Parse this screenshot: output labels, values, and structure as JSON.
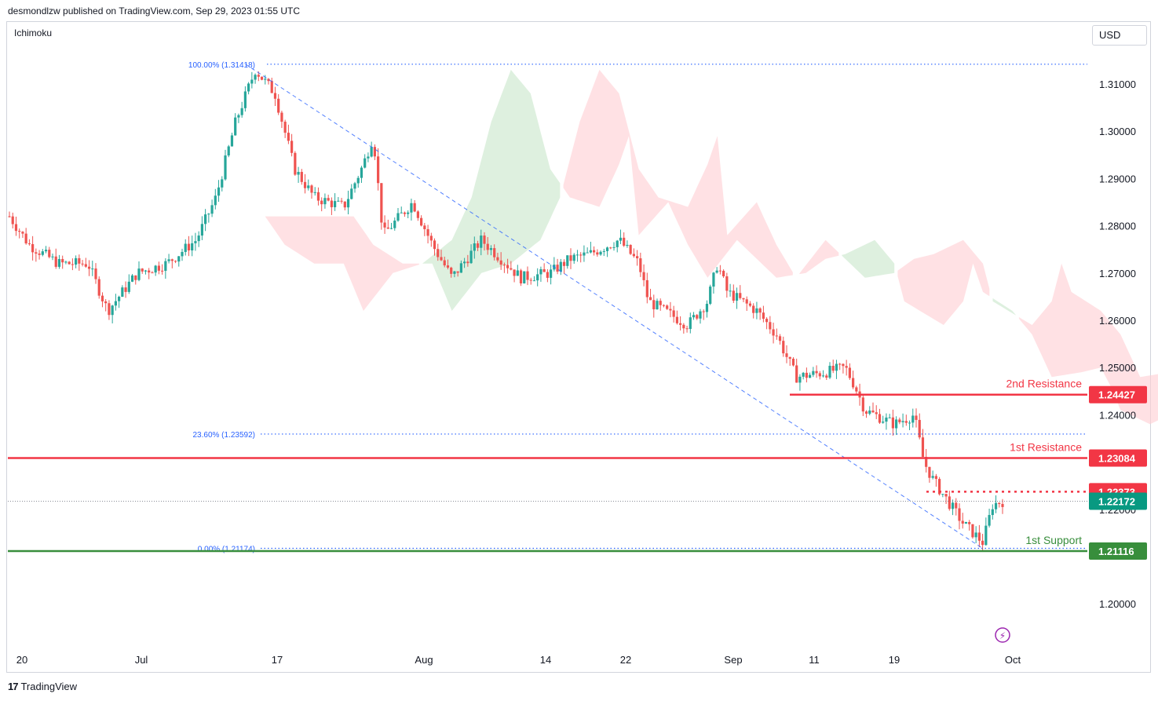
{
  "header": {
    "publisher": "desmondlzw published on TradingView.com, Sep 29, 2023 01:55 UTC"
  },
  "indicator_label": "Ichimoku",
  "currency": "USD",
  "footer": {
    "brand": "TradingView",
    "logo_icon": "tradingview-logo-icon"
  },
  "colors": {
    "up": "#26a69a",
    "down": "#ef5350",
    "resistance": "#f23645",
    "support": "#388e3c",
    "fib": "#2962ff",
    "last_price": "#089981",
    "cloud_bull": "#c8e6c9",
    "cloud_bear": "#ffcdd2"
  },
  "chart_data": {
    "type": "candlestick",
    "symbol_note": "Ichimoku",
    "y_axis": {
      "ticks": [
        1.31,
        1.3,
        1.29,
        1.28,
        1.27,
        1.26,
        1.25,
        1.24,
        1.22,
        1.2
      ],
      "tick_labels": [
        "1.31000",
        "1.30000",
        "1.29000",
        "1.28000",
        "1.27000",
        "1.26000",
        "1.25000",
        "1.24000",
        "1.22000",
        "1.20000"
      ],
      "range": [
        1.19,
        1.32
      ]
    },
    "x_axis": {
      "ticks": [
        "20",
        "Jul",
        "17",
        "Aug",
        "14",
        "22",
        "Sep",
        "11",
        "19",
        "Oct"
      ]
    },
    "price_path": [
      [
        "Jun 20",
        1.282
      ],
      [
        "Jun 22",
        1.276
      ],
      [
        "Jun 25",
        1.272
      ],
      [
        "Jun 28",
        1.272
      ],
      [
        "Jun 30",
        1.262
      ],
      [
        "Jul 3",
        1.27
      ],
      [
        "Jul 6",
        1.272
      ],
      [
        "Jul 9",
        1.277
      ],
      [
        "Jul 11",
        1.286
      ],
      [
        "Jul 13",
        1.302
      ],
      [
        "Jul 15",
        1.313
      ],
      [
        "Jul 17",
        1.308
      ],
      [
        "Jul 19",
        1.292
      ],
      [
        "Jul 21",
        1.286
      ],
      [
        "Jul 24",
        1.284
      ],
      [
        "Jul 26",
        1.293
      ],
      [
        "Jul 27",
        1.299
      ],
      [
        "Jul 28",
        1.278
      ],
      [
        "Jul 31",
        1.285
      ],
      [
        "Aug 2",
        1.276
      ],
      [
        "Aug 4",
        1.269
      ],
      [
        "Aug 7",
        1.277
      ],
      [
        "Aug 9",
        1.273
      ],
      [
        "Aug 11",
        1.269
      ],
      [
        "Aug 14",
        1.27
      ],
      [
        "Aug 16",
        1.273
      ],
      [
        "Aug 18",
        1.274
      ],
      [
        "Aug 21",
        1.277
      ],
      [
        "Aug 23",
        1.272
      ],
      [
        "Aug 24",
        1.264
      ],
      [
        "Aug 28",
        1.259
      ],
      [
        "Aug 30",
        1.264
      ],
      [
        "Aug 31",
        1.272
      ],
      [
        "Sep 1",
        1.266
      ],
      [
        "Sep 4",
        1.262
      ],
      [
        "Sep 6",
        1.257
      ],
      [
        "Sep 8",
        1.248
      ],
      [
        "Sep 11",
        1.249
      ],
      [
        "Sep 13",
        1.25
      ],
      [
        "Sep 14",
        1.246
      ],
      [
        "Sep 15",
        1.241
      ],
      [
        "Sep 18",
        1.238
      ],
      [
        "Sep 20",
        1.24
      ],
      [
        "Sep 21",
        1.23
      ],
      [
        "Sep 22",
        1.226
      ],
      [
        "Sep 25",
        1.217
      ],
      [
        "Sep 26",
        1.215
      ],
      [
        "Sep 27",
        1.213
      ],
      [
        "Sep 28",
        1.221
      ],
      [
        "Sep 29",
        1.2217
      ]
    ],
    "levels": [
      {
        "name": "2nd Resistance",
        "value": 1.24427,
        "label": "1.24427",
        "kind": "resistance"
      },
      {
        "name": "1st Resistance",
        "value": 1.23084,
        "label": "1.23084",
        "kind": "resistance"
      },
      {
        "name": "1st Support",
        "value": 1.21116,
        "label": "1.21116",
        "kind": "support"
      }
    ],
    "extra_price_tags": [
      {
        "value": 1.22373,
        "label": "1.22373",
        "kind": "resistance-dotted"
      },
      {
        "value": 1.22172,
        "label": "1.22172",
        "kind": "last-price"
      }
    ],
    "fibonacci": [
      {
        "label": "100.00% (1.31418)",
        "value": 1.31418
      },
      {
        "label": "23.60% (1.23592)",
        "value": 1.23592
      },
      {
        "label": "0.00% (1.21174)",
        "value": 1.21174
      }
    ],
    "trendline": {
      "from": [
        "Jul 14",
        1.3142
      ],
      "to": [
        "Sep 27",
        1.2117
      ]
    },
    "grid": false,
    "legend": "none"
  }
}
